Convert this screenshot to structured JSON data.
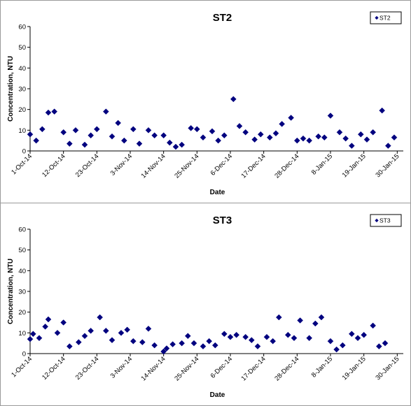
{
  "chart_data": [
    {
      "type": "scatter",
      "title": "ST2",
      "xlabel": "Date",
      "ylabel": "Concentration, NTU",
      "ylim": [
        0,
        60
      ],
      "yticks": [
        0,
        10,
        20,
        30,
        40,
        50,
        60
      ],
      "xlim": [
        "2014-10-01",
        "2015-02-01"
      ],
      "xtick_labels": [
        "1-Oct-14",
        "12-Oct-14",
        "23-Oct-14",
        "3-Nov-14",
        "14-Nov-14",
        "25-Nov-14",
        "6-Dec-14",
        "17-Dec-14",
        "28-Dec-14",
        "8-Jan-15",
        "19-Jan-15",
        "30-Jan-15"
      ],
      "xtick_dates": [
        "2014-10-01",
        "2014-10-12",
        "2014-10-23",
        "2014-11-03",
        "2014-11-14",
        "2014-11-25",
        "2014-12-06",
        "2014-12-17",
        "2014-12-28",
        "2015-01-08",
        "2015-01-19",
        "2015-01-30"
      ],
      "grid": false,
      "legend": "top-right",
      "marker": "diamond",
      "color": "#00007F",
      "series": [
        {
          "name": "ST2",
          "points": [
            [
              "2014-10-01",
              8
            ],
            [
              "2014-10-03",
              5
            ],
            [
              "2014-10-05",
              10.5
            ],
            [
              "2014-10-07",
              18.5
            ],
            [
              "2014-10-09",
              19
            ],
            [
              "2014-10-12",
              9
            ],
            [
              "2014-10-14",
              3.5
            ],
            [
              "2014-10-16",
              10
            ],
            [
              "2014-10-19",
              3
            ],
            [
              "2014-10-21",
              7.5
            ],
            [
              "2014-10-23",
              10.5
            ],
            [
              "2014-10-26",
              19
            ],
            [
              "2014-10-28",
              7
            ],
            [
              "2014-10-30",
              13.5
            ],
            [
              "2014-11-01",
              5
            ],
            [
              "2014-11-04",
              10.5
            ],
            [
              "2014-11-06",
              3.5
            ],
            [
              "2014-11-09",
              10
            ],
            [
              "2014-11-11",
              7.5
            ],
            [
              "2014-11-14",
              7.5
            ],
            [
              "2014-11-16",
              4
            ],
            [
              "2014-11-18",
              2
            ],
            [
              "2014-11-20",
              3
            ],
            [
              "2014-11-23",
              11
            ],
            [
              "2014-11-25",
              10.5
            ],
            [
              "2014-11-27",
              6.5
            ],
            [
              "2014-11-30",
              9.5
            ],
            [
              "2014-12-02",
              5
            ],
            [
              "2014-12-04",
              7.5
            ],
            [
              "2014-12-07",
              25
            ],
            [
              "2014-12-09",
              12
            ],
            [
              "2014-12-11",
              9
            ],
            [
              "2014-12-14",
              5.5
            ],
            [
              "2014-12-16",
              8
            ],
            [
              "2014-12-19",
              6.5
            ],
            [
              "2014-12-21",
              8.5
            ],
            [
              "2014-12-23",
              13
            ],
            [
              "2014-12-26",
              16
            ],
            [
              "2014-12-28",
              5
            ],
            [
              "2014-12-30",
              6
            ],
            [
              "2015-01-01",
              5
            ],
            [
              "2015-01-04",
              7
            ],
            [
              "2015-01-06",
              6.5
            ],
            [
              "2015-01-08",
              17
            ],
            [
              "2015-01-11",
              9
            ],
            [
              "2015-01-13",
              6
            ],
            [
              "2015-01-15",
              2.5
            ],
            [
              "2015-01-18",
              8
            ],
            [
              "2015-01-20",
              5.5
            ],
            [
              "2015-01-22",
              9
            ],
            [
              "2015-01-25",
              19.5
            ],
            [
              "2015-01-27",
              2.5
            ],
            [
              "2015-01-29",
              6.5
            ]
          ]
        }
      ]
    },
    {
      "type": "scatter",
      "title": "ST3",
      "xlabel": "Date",
      "ylabel": "Concentration, NTU",
      "ylim": [
        0,
        60
      ],
      "yticks": [
        0,
        10,
        20,
        30,
        40,
        50,
        60
      ],
      "xlim": [
        "2014-10-01",
        "2015-02-01"
      ],
      "xtick_labels": [
        "1-Oct-14",
        "12-Oct-14",
        "23-Oct-14",
        "3-Nov-14",
        "14-Nov-14",
        "25-Nov-14",
        "6-Dec-14",
        "17-Dec-14",
        "28-Dec-14",
        "8-Jan-15",
        "19-Jan-15",
        "30-Jan-15"
      ],
      "xtick_dates": [
        "2014-10-01",
        "2014-10-12",
        "2014-10-23",
        "2014-11-03",
        "2014-11-14",
        "2014-11-25",
        "2014-12-06",
        "2014-12-17",
        "2014-12-28",
        "2015-01-08",
        "2015-01-19",
        "2015-01-30"
      ],
      "grid": false,
      "legend": "top-right",
      "marker": "diamond",
      "color": "#00007F",
      "series": [
        {
          "name": "ST3",
          "points": [
            [
              "2014-10-01",
              7
            ],
            [
              "2014-10-02",
              9.5
            ],
            [
              "2014-10-04",
              7.5
            ],
            [
              "2014-10-06",
              13
            ],
            [
              "2014-10-07",
              16.5
            ],
            [
              "2014-10-10",
              10
            ],
            [
              "2014-10-12",
              15
            ],
            [
              "2014-10-14",
              3.5
            ],
            [
              "2014-10-17",
              5.5
            ],
            [
              "2014-10-19",
              8.5
            ],
            [
              "2014-10-21",
              11
            ],
            [
              "2014-10-24",
              17.5
            ],
            [
              "2014-10-26",
              11
            ],
            [
              "2014-10-28",
              6.5
            ],
            [
              "2014-10-31",
              10
            ],
            [
              "2014-11-02",
              11.5
            ],
            [
              "2014-11-04",
              6
            ],
            [
              "2014-11-07",
              5.5
            ],
            [
              "2014-11-09",
              12
            ],
            [
              "2014-11-11",
              4
            ],
            [
              "2014-11-14",
              1
            ],
            [
              "2014-11-15",
              2.5
            ],
            [
              "2014-11-17",
              4.5
            ],
            [
              "2014-11-20",
              5
            ],
            [
              "2014-11-22",
              8.5
            ],
            [
              "2014-11-24",
              5
            ],
            [
              "2014-11-27",
              3.5
            ],
            [
              "2014-11-29",
              6
            ],
            [
              "2014-12-01",
              4
            ],
            [
              "2014-12-04",
              9.5
            ],
            [
              "2014-12-06",
              8
            ],
            [
              "2014-12-08",
              9
            ],
            [
              "2014-12-11",
              8
            ],
            [
              "2014-12-13",
              6.5
            ],
            [
              "2014-12-15",
              3.5
            ],
            [
              "2014-12-18",
              8
            ],
            [
              "2014-12-20",
              6
            ],
            [
              "2014-12-22",
              17.5
            ],
            [
              "2014-12-25",
              9
            ],
            [
              "2014-12-27",
              7.5
            ],
            [
              "2014-12-29",
              16
            ],
            [
              "2015-01-01",
              7.5
            ],
            [
              "2015-01-03",
              14.5
            ],
            [
              "2015-01-05",
              17.5
            ],
            [
              "2015-01-08",
              6
            ],
            [
              "2015-01-10",
              2
            ],
            [
              "2015-01-12",
              4
            ],
            [
              "2015-01-15",
              9.5
            ],
            [
              "2015-01-17",
              7.5
            ],
            [
              "2015-01-19",
              9
            ],
            [
              "2015-01-22",
              13.5
            ],
            [
              "2015-01-24",
              3.5
            ],
            [
              "2015-01-26",
              5
            ]
          ]
        }
      ]
    }
  ]
}
